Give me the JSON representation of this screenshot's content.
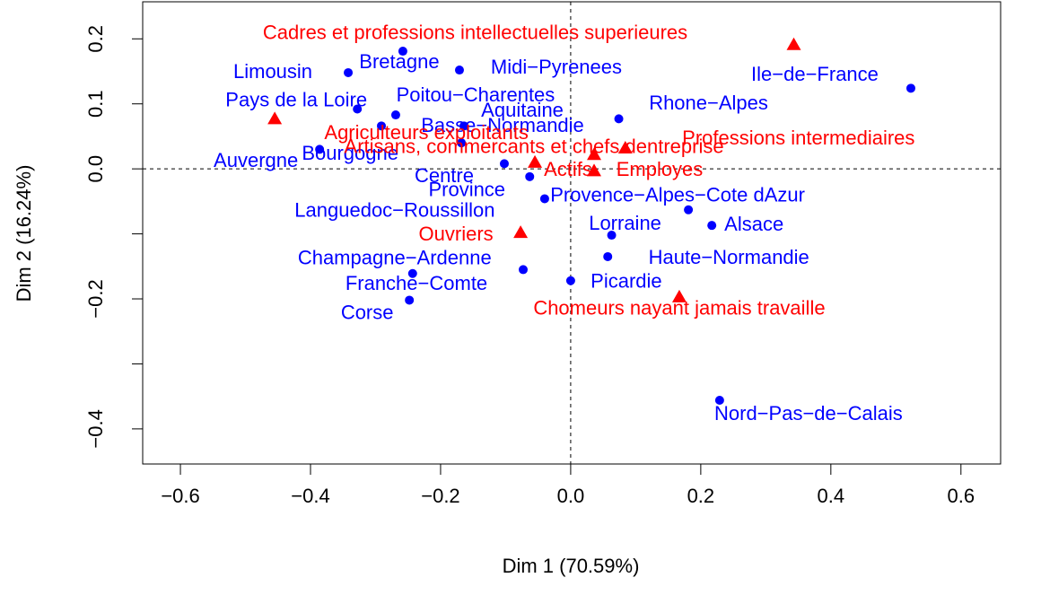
{
  "chart_data": {
    "type": "scatter",
    "xlabel": "Dim 1 (70.59%)",
    "ylabel": "Dim 2 (16.24%)",
    "xlim": [
      -0.658,
      0.661
    ],
    "ylim": [
      -0.454,
      0.257
    ],
    "xticks": [
      {
        "value": -0.6,
        "label": "−0.6"
      },
      {
        "value": -0.4,
        "label": "−0.4"
      },
      {
        "value": -0.2,
        "label": "−0.2"
      },
      {
        "value": 0,
        "label": "0.0"
      },
      0.2,
      0.4,
      0.6
    ],
    "yticks": [
      {
        "value": -0.4,
        "label": "−0.4"
      },
      {
        "value": -0.3,
        "label": null
      },
      {
        "value": -0.2,
        "label": "−0.2"
      },
      {
        "value": -0.1,
        "label": null
      },
      {
        "value": 0,
        "label": "0.0"
      },
      0.1,
      0.2
    ],
    "series": [
      {
        "color": "#0000ff",
        "marker": "circle",
        "labels": [
          "Limousin",
          "Bretagne",
          "Midi−Pyrenees",
          "Ile−de−France",
          "Pays de la Loire",
          "Poitou−Charentes",
          "Aquitaine",
          "Basse−Normandie",
          "Rhone−Alpes",
          "Auvergne",
          "Bourgogne",
          "Centre",
          "Province",
          "Provence−Alpes−Cote dAzur",
          "Languedoc−Roussillon",
          "Lorraine",
          "Alsace",
          "Haute−Normandie",
          "Champagne−Ardenne",
          "Franche−Comte",
          "Picardie",
          "Corse",
          "Nord−Pas−de−Calais"
        ],
        "x": [
          -0.342,
          -0.258,
          -0.171,
          0.523,
          -0.328,
          -0.269,
          -0.164,
          -0.291,
          0.074,
          -0.386,
          -0.168,
          -0.102,
          -0.063,
          0.181,
          -0.04,
          0.063,
          0.217,
          0.057,
          -0.243,
          -0.073,
          0.0,
          -0.248,
          0.229
        ],
        "values": [
          0.148,
          0.181,
          0.152,
          0.124,
          0.092,
          0.083,
          0.066,
          0.066,
          0.077,
          0.03,
          0.04,
          0.008,
          -0.012,
          -0.063,
          -0.046,
          -0.102,
          -0.087,
          -0.135,
          -0.161,
          -0.155,
          -0.172,
          -0.202,
          -0.356
        ]
      },
      {
        "color": "#ff0000",
        "marker": "triangle",
        "labels": [
          "Cadres et professions intellectuelles superieures",
          "Agriculteurs exploitants",
          "Professions intermediaires",
          "Artisans, commercants et chefs dentreprise",
          "Actifs",
          "Employes",
          "Ouvriers",
          "Chomeurs nayant jamais travaille"
        ],
        "x": [
          0.343,
          -0.455,
          0.084,
          -0.055,
          0.036,
          0.036,
          -0.077,
          0.167
        ],
        "values": [
          0.191,
          0.077,
          0.032,
          0.01,
          0.022,
          -0.003,
          -0.098,
          -0.197
        ]
      }
    ]
  }
}
